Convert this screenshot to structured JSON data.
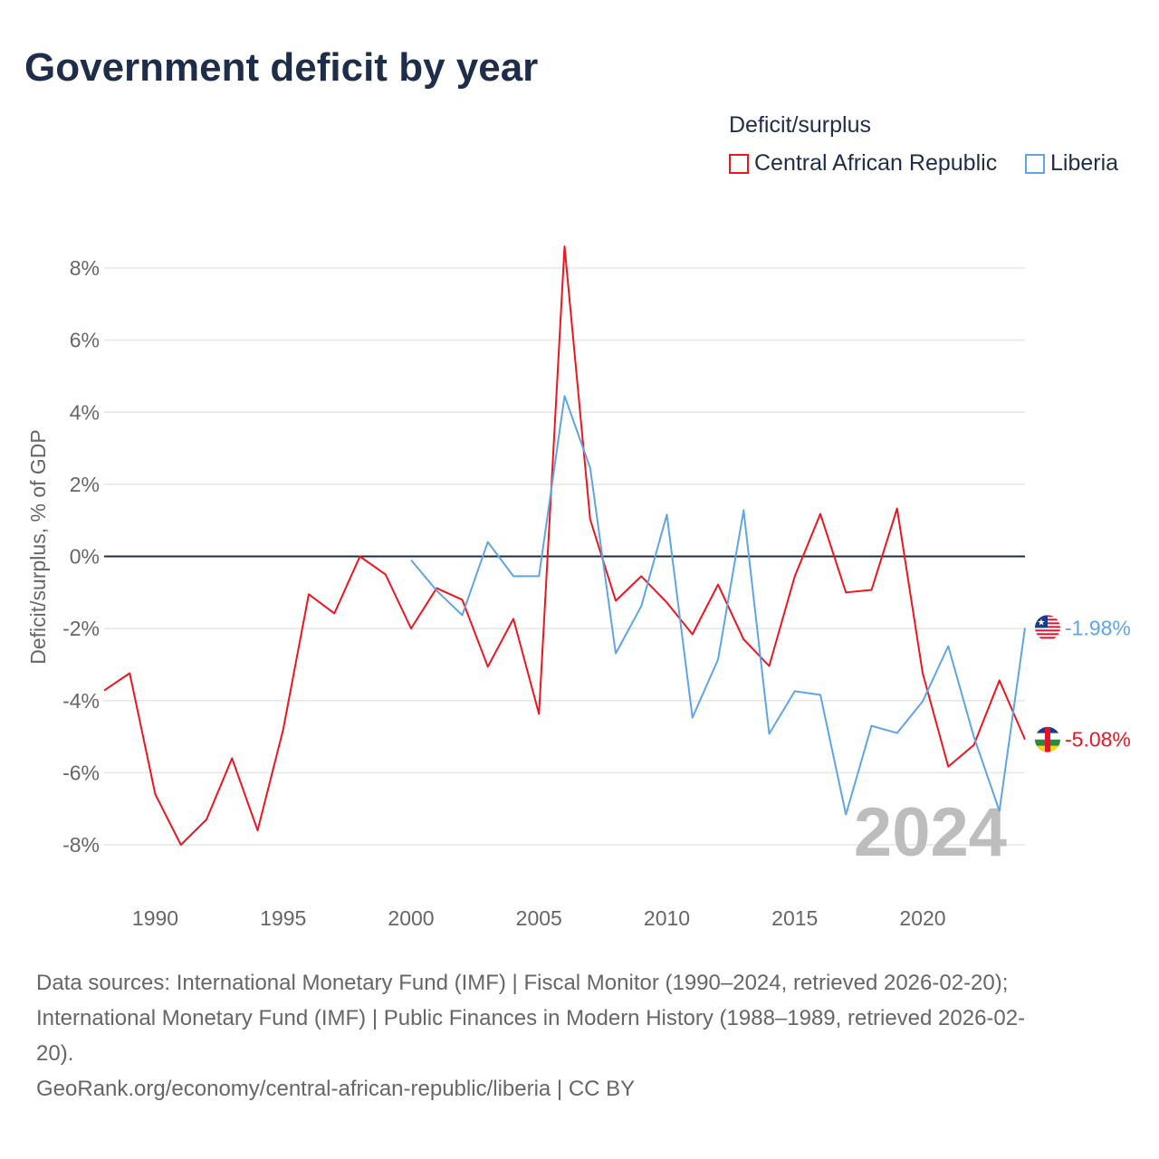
{
  "title": "Government deficit by year",
  "legend": {
    "title": "Deficit/surplus",
    "items": [
      {
        "label": "Central African Republic",
        "color": "#f0141e"
      },
      {
        "label": "Liberia",
        "color": "#5ea5e8"
      }
    ]
  },
  "watermark_year": "2024",
  "source_lines": [
    "Data sources: International Monetary Fund (IMF) | Fiscal Monitor (1990–2024, retrieved 2026-02-20);",
    "International Monetary Fund (IMF) | Public Finances in Modern History (1988–1989, retrieved 2026-02-",
    "20).",
    "GeoRank.org/economy/central-african-republic/liberia | CC BY"
  ],
  "chart_data": {
    "type": "line",
    "ylabel": "Deficit/surplus, % of GDP",
    "xlabel": "",
    "xlim": [
      1988,
      2024
    ],
    "ylim": [
      -8,
      8
    ],
    "x_ticks": [
      1990,
      1995,
      2000,
      2005,
      2010,
      2015,
      2020
    ],
    "y_ticks": [
      8,
      6,
      4,
      2,
      0,
      -2,
      -4,
      -6,
      -8
    ],
    "y_tick_labels": [
      "8%",
      "6%",
      "4%",
      "2%",
      "0%",
      "-2%",
      "-4%",
      "-6%",
      "-8%"
    ],
    "grid": true,
    "series": [
      {
        "name": "Central African Republic",
        "color": "#f0141e",
        "end_label": "-5.08%",
        "x": [
          1988,
          1989,
          1990,
          1991,
          1992,
          1993,
          1994,
          1995,
          1996,
          1997,
          1998,
          1999,
          2000,
          2001,
          2002,
          2003,
          2004,
          2005,
          2006,
          2007,
          2008,
          2009,
          2010,
          2011,
          2012,
          2013,
          2014,
          2015,
          2016,
          2017,
          2018,
          2019,
          2020,
          2021,
          2022,
          2023,
          2024
        ],
        "values": [
          -3.72,
          -3.24,
          -6.6,
          -8.0,
          -7.3,
          -5.6,
          -7.6,
          -4.8,
          -1.05,
          -1.58,
          0,
          -0.5,
          -2.0,
          -0.88,
          -1.2,
          -3.06,
          -1.73,
          -4.37,
          8.6,
          1.03,
          -1.23,
          -0.55,
          -1.28,
          -2.16,
          -0.78,
          -2.3,
          -3.04,
          -0.55,
          1.18,
          -1.0,
          -0.93,
          1.33,
          -3.24,
          -5.83,
          -5.23,
          -3.44,
          -5.08
        ]
      },
      {
        "name": "Liberia",
        "color": "#5ea5e8",
        "end_label": "-1.98%",
        "x": [
          2000,
          2001,
          2002,
          2003,
          2004,
          2005,
          2006,
          2007,
          2008,
          2009,
          2010,
          2011,
          2012,
          2013,
          2014,
          2015,
          2016,
          2017,
          2018,
          2019,
          2020,
          2021,
          2022,
          2023,
          2024
        ],
        "values": [
          -0.1,
          -0.95,
          -1.63,
          0.4,
          -0.55,
          -0.55,
          4.45,
          2.46,
          -2.69,
          -1.38,
          1.16,
          -4.47,
          -2.86,
          1.28,
          -4.92,
          -3.74,
          -3.84,
          -7.16,
          -4.7,
          -4.9,
          -4.02,
          -2.49,
          -5.0,
          -7.06,
          -1.98
        ]
      }
    ]
  }
}
